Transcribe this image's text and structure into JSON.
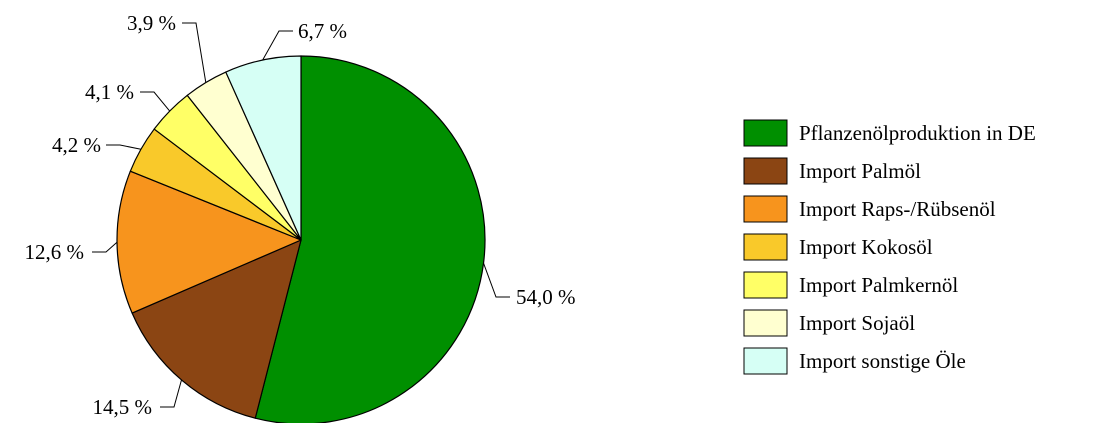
{
  "chart_data": {
    "type": "pie",
    "title": "",
    "legend_position": "right",
    "slices": [
      {
        "label": "Pflanzenölproduktion in DE",
        "value": 54.0,
        "value_label": "54,0 %",
        "color": "#008F00"
      },
      {
        "label": "Import Palmöl",
        "value": 14.5,
        "value_label": "14,5 %",
        "color": "#8B4513"
      },
      {
        "label": "Import Raps-/Rübsenöl",
        "value": 12.6,
        "value_label": "12,6 %",
        "color": "#F7941D"
      },
      {
        "label": "Import Kokosöl",
        "value": 4.2,
        "value_label": "4,2 %",
        "color": "#F9C92A"
      },
      {
        "label": "Import Palmkernöl",
        "value": 4.1,
        "value_label": "4,1 %",
        "color": "#FFFF66"
      },
      {
        "label": "Import Sojaöl",
        "value": 3.9,
        "value_label": "3,9 %",
        "color": "#FFFFD0"
      },
      {
        "label": "Import sonstige Öle",
        "value": 6.7,
        "value_label": "6,7 %",
        "color": "#D6FFF5"
      }
    ]
  }
}
